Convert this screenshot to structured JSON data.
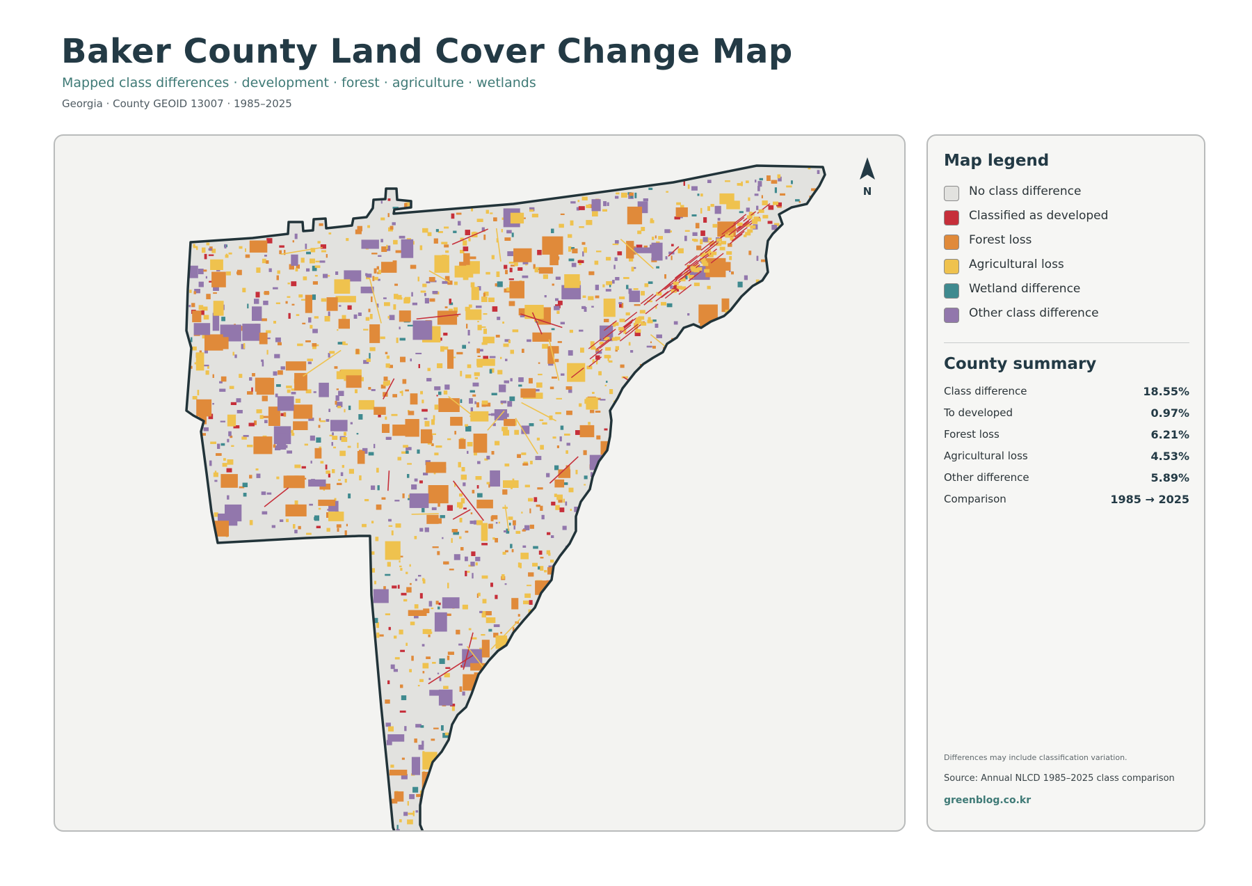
{
  "header": {
    "title": "Baker County Land Cover Change Map",
    "subtitle": "Mapped class differences · development · forest · agriculture · wetlands",
    "meta": "Georgia · County GEOID 13007 · 1985–2025"
  },
  "map": {
    "north_label": "N",
    "county_fill": "#e2e2df",
    "county_outline": "#213339"
  },
  "legend": {
    "title": "Map legend",
    "items": [
      {
        "label": "No class difference",
        "color": "#e2e2df"
      },
      {
        "label": "Classified as developed",
        "color": "#c62f3a"
      },
      {
        "label": "Forest loss",
        "color": "#e08a3a"
      },
      {
        "label": "Agricultural loss",
        "color": "#efc24e"
      },
      {
        "label": "Wetland difference",
        "color": "#3f8a8f"
      },
      {
        "label": "Other class difference",
        "color": "#9277ac"
      }
    ]
  },
  "summary": {
    "title": "County summary",
    "rows": [
      {
        "label": "Class difference",
        "value": "18.55%"
      },
      {
        "label": "To developed",
        "value": "0.97%"
      },
      {
        "label": "Forest loss",
        "value": "6.21%"
      },
      {
        "label": "Agricultural loss",
        "value": "4.53%"
      },
      {
        "label": "Other difference",
        "value": "5.89%"
      },
      {
        "label": "Comparison",
        "value": "1985 → 2025"
      }
    ]
  },
  "footer": {
    "note": "Differences may include classification variation.",
    "source": "Source: Annual NLCD 1985–2025 class comparison",
    "credit": "greenblog.co.kr"
  }
}
